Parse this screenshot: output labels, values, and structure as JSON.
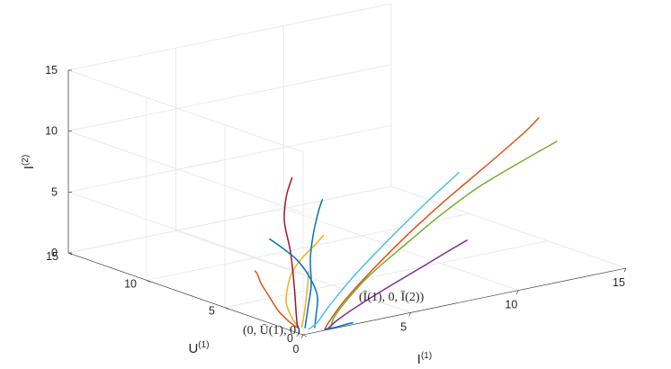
{
  "chart_data": {
    "type": "line3d",
    "axes": {
      "x": {
        "label": "I",
        "label_sup": "(1)",
        "ticks": [
          "0",
          "5",
          "10",
          "15"
        ],
        "lim": [
          0,
          15
        ]
      },
      "y": {
        "label": "U",
        "label_sup": "(1)",
        "ticks": [
          "0",
          "5",
          "10",
          "15"
        ],
        "lim": [
          0,
          15
        ]
      },
      "z": {
        "label": "I",
        "label_sup": "(2)",
        "ticks": [
          "0",
          "5",
          "10",
          "15"
        ],
        "lim": [
          0,
          15
        ]
      }
    },
    "grid": true,
    "annotations": [
      {
        "text": "(0, Ū(1), 0)",
        "x": 0,
        "y": 1,
        "z": 0
      },
      {
        "text": "(Ī(1), 0, Ī(2))",
        "x": 1,
        "y": 0,
        "z": 0.1
      }
    ],
    "series": [
      {
        "color": "#D95319",
        "points": [
          [
            0.4,
            1.0,
            0.05
          ],
          [
            0.45,
            1.6,
            0.3
          ],
          [
            0.5,
            2.3,
            0.8
          ],
          [
            0.55,
            2.9,
            1.6
          ],
          [
            0.6,
            3.5,
            2.4
          ],
          [
            0.65,
            3.8,
            3.0
          ],
          [
            0.68,
            4.0,
            3.2
          ]
        ]
      },
      {
        "color": "#EDB120",
        "points": [
          [
            0.5,
            1.0,
            0.05
          ],
          [
            0.55,
            1.4,
            0.4
          ],
          [
            0.6,
            1.9,
            1.5
          ],
          [
            0.8,
            2.1,
            2.6
          ],
          [
            1.2,
            2.4,
            3.5
          ],
          [
            1.8,
            2.6,
            4.4
          ],
          [
            2.6,
            2.8,
            5.2
          ],
          [
            3.2,
            3.1,
            5.6
          ]
        ]
      },
      {
        "color": "#EDB120",
        "points": [
          [
            0.55,
            0.85,
            0.05
          ],
          [
            0.7,
            0.9,
            1.0
          ],
          [
            1.0,
            1.1,
            3.0
          ],
          [
            1.2,
            1.3,
            4.2
          ]
        ]
      },
      {
        "color": "#A2142F",
        "points": [
          [
            0.4,
            0.9,
            0.05
          ],
          [
            0.42,
            1.0,
            0.8
          ],
          [
            0.45,
            1.2,
            3.5
          ],
          [
            0.5,
            1.5,
            6.0
          ],
          [
            0.8,
            2.3,
            8.0
          ],
          [
            1.4,
            3.0,
            9.5
          ],
          [
            2.1,
            3.6,
            10.5
          ]
        ]
      },
      {
        "color": "#0072BD",
        "points": [
          [
            0.6,
            0.7,
            0.05
          ],
          [
            0.8,
            0.8,
            1.5
          ],
          [
            1.1,
            1.0,
            3.2
          ],
          [
            1.5,
            1.6,
            5.0
          ],
          [
            2.0,
            2.1,
            6.6
          ],
          [
            2.6,
            2.6,
            8.0
          ],
          [
            3.0,
            2.9,
            8.7
          ]
        ]
      },
      {
        "color": "#0072BD",
        "points": [
          [
            0.9,
            0.5,
            0.05
          ],
          [
            1.0,
            0.55,
            1.0
          ],
          [
            1.1,
            0.6,
            2.5
          ],
          [
            0.9,
            0.8,
            4.0
          ],
          [
            0.5,
            1.1,
            5.5
          ],
          [
            0.1,
            1.6,
            6.5
          ],
          [
            -0.1,
            2.0,
            7.0
          ]
        ]
      },
      {
        "color": "#0072BD",
        "points": [
          [
            1.0,
            0.0,
            0.1
          ],
          [
            1.4,
            -0.05,
            0.1
          ],
          [
            2.0,
            -0.02,
            0.15
          ],
          [
            2.3,
            0.0,
            0.15
          ]
        ]
      },
      {
        "color": "#4DBEEE",
        "points": [
          [
            0.6,
            0.45,
            0.05
          ],
          [
            0.9,
            0.3,
            0.6
          ],
          [
            1.6,
            0.6,
            1.4
          ],
          [
            3.5,
            1.7,
            2.6
          ],
          [
            6,
            3.0,
            4.0
          ],
          [
            9,
            4.6,
            5.4
          ],
          [
            11.6,
            6.0,
            6.4
          ]
        ]
      },
      {
        "color": "#77AC30",
        "points": [
          [
            1.3,
            0.0,
            0.2
          ],
          [
            1.5,
            0.1,
            0.8
          ],
          [
            2.2,
            0.3,
            1.8
          ],
          [
            3.5,
            0.6,
            3.3
          ],
          [
            5.5,
            1.0,
            5.0
          ],
          [
            7.5,
            1.4,
            6.6
          ],
          [
            9.5,
            1.8,
            7.9
          ],
          [
            11.8,
            2.2,
            9.0
          ],
          [
            13.6,
            2.5,
            9.8
          ]
        ]
      },
      {
        "color": "#D95319",
        "points": [
          [
            1.1,
            0.1,
            0.1
          ],
          [
            1.4,
            0.2,
            0.6
          ],
          [
            2.2,
            0.4,
            1.8
          ],
          [
            3.5,
            0.6,
            3.5
          ],
          [
            5.5,
            0.9,
            5.8
          ],
          [
            7.5,
            1.2,
            7.8
          ],
          [
            9.5,
            1.5,
            9.6
          ],
          [
            11.6,
            1.8,
            11.6
          ],
          [
            12.4,
            2.0,
            12.4
          ]
        ]
      },
      {
        "color": "#7E2F8E",
        "points": [
          [
            1.1,
            -0.05,
            0.1
          ],
          [
            1.8,
            0.3,
            0.4
          ],
          [
            3.0,
            0.7,
            0.9
          ],
          [
            5.0,
            1.4,
            1.5
          ],
          [
            7.0,
            2.2,
            1.9
          ],
          [
            9.0,
            3.1,
            2.2
          ],
          [
            10.3,
            3.7,
            2.35
          ]
        ]
      }
    ]
  }
}
